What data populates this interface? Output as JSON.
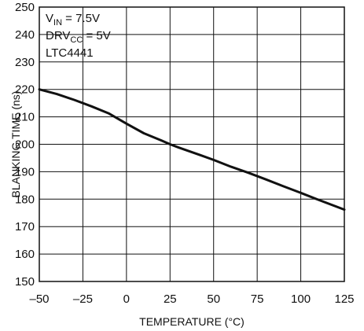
{
  "chart_data": {
    "type": "line",
    "xlabel": "TEMPERATURE (°C)",
    "ylabel": "BLANKING TIME (ns)",
    "xlim": [
      -50,
      125
    ],
    "ylim": [
      150,
      250
    ],
    "xticks": [
      -50,
      -25,
      0,
      25,
      50,
      75,
      100,
      125
    ],
    "yticks": [
      150,
      160,
      170,
      180,
      190,
      200,
      210,
      220,
      230,
      240,
      250
    ],
    "xtick_labels": [
      "–50",
      "–25",
      "0",
      "25",
      "50",
      "75",
      "100",
      "125"
    ],
    "ytick_labels": [
      "150",
      "160",
      "170",
      "180",
      "190",
      "200",
      "210",
      "220",
      "230",
      "240",
      "250"
    ],
    "grid": true,
    "annotations": {
      "vin": {
        "main": "V",
        "sub": "IN",
        "rest": " = 7.5V"
      },
      "drvcc": {
        "main": "DRV",
        "sub": "CC",
        "rest": " = 5V"
      },
      "part": "LTC4441"
    },
    "series": [
      {
        "x": [
          -50,
          -40,
          -30,
          -20,
          -10,
          0,
          10,
          20,
          25,
          30,
          40,
          50,
          60,
          70,
          80,
          90,
          100,
          110,
          125
        ],
        "y": [
          220,
          218.3,
          216.2,
          213.8,
          211.2,
          207.5,
          204.0,
          201.4,
          200.0,
          198.8,
          196.6,
          194.3,
          191.8,
          189.6,
          187.2,
          184.7,
          182.3,
          179.8,
          176.2
        ]
      }
    ]
  },
  "colors": {
    "line": "#111111",
    "grid": "#111111",
    "background": "#ffffff"
  }
}
